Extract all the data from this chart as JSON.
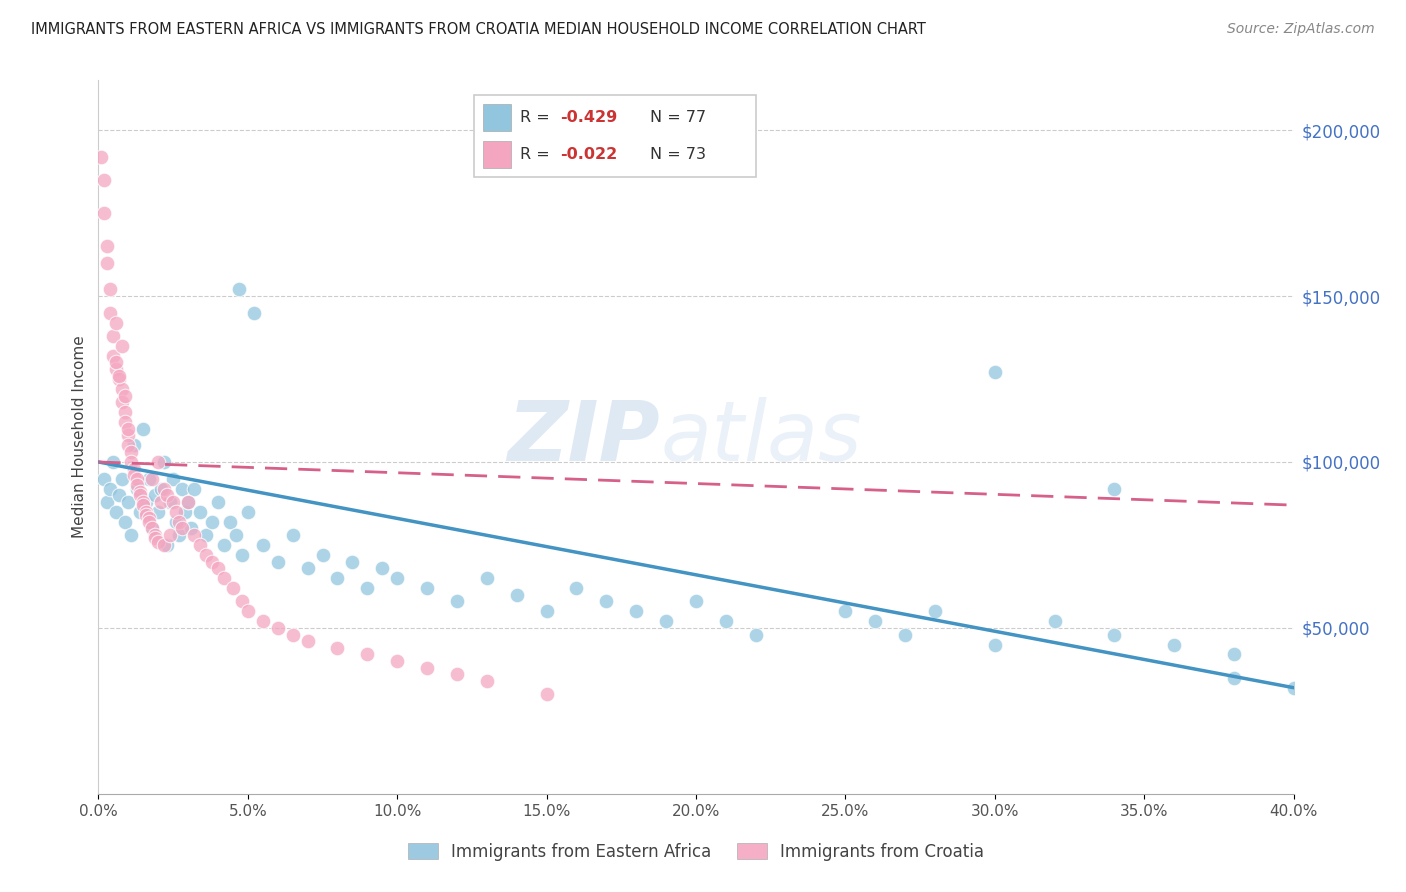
{
  "title": "IMMIGRANTS FROM EASTERN AFRICA VS IMMIGRANTS FROM CROATIA MEDIAN HOUSEHOLD INCOME CORRELATION CHART",
  "source": "Source: ZipAtlas.com",
  "ylabel": "Median Household Income",
  "right_yticks": [
    0,
    50000,
    100000,
    150000,
    200000
  ],
  "right_yticklabels": [
    "",
    "$50,000",
    "$100,000",
    "$150,000",
    "$200,000"
  ],
  "label1": "Immigrants from Eastern Africa",
  "label2": "Immigrants from Croatia",
  "color1": "#92c5de",
  "color2": "#f4a6c0",
  "line_color1": "#4393c3",
  "line_color2": "#d6608a",
  "watermark_zip": "ZIP",
  "watermark_atlas": "atlas",
  "xlim": [
    0.0,
    0.4
  ],
  "ylim": [
    0,
    215000
  ],
  "blue_scatter_x": [
    0.002,
    0.003,
    0.004,
    0.005,
    0.006,
    0.007,
    0.008,
    0.009,
    0.01,
    0.011,
    0.012,
    0.013,
    0.014,
    0.015,
    0.016,
    0.017,
    0.018,
    0.019,
    0.02,
    0.021,
    0.022,
    0.023,
    0.024,
    0.025,
    0.026,
    0.027,
    0.028,
    0.029,
    0.03,
    0.031,
    0.032,
    0.034,
    0.036,
    0.038,
    0.04,
    0.042,
    0.044,
    0.046,
    0.048,
    0.05,
    0.055,
    0.06,
    0.065,
    0.07,
    0.075,
    0.08,
    0.085,
    0.09,
    0.095,
    0.1,
    0.11,
    0.12,
    0.13,
    0.14,
    0.15,
    0.16,
    0.17,
    0.18,
    0.19,
    0.2,
    0.047,
    0.052,
    0.21,
    0.22,
    0.25,
    0.26,
    0.27,
    0.28,
    0.3,
    0.32,
    0.34,
    0.36,
    0.38,
    0.34,
    0.38,
    0.4,
    0.3
  ],
  "blue_scatter_y": [
    95000,
    88000,
    92000,
    100000,
    85000,
    90000,
    95000,
    82000,
    88000,
    78000,
    105000,
    92000,
    85000,
    110000,
    88000,
    95000,
    80000,
    90000,
    85000,
    92000,
    100000,
    75000,
    88000,
    95000,
    82000,
    78000,
    92000,
    85000,
    88000,
    80000,
    92000,
    85000,
    78000,
    82000,
    88000,
    75000,
    82000,
    78000,
    72000,
    85000,
    75000,
    70000,
    78000,
    68000,
    72000,
    65000,
    70000,
    62000,
    68000,
    65000,
    62000,
    58000,
    65000,
    60000,
    55000,
    62000,
    58000,
    55000,
    52000,
    58000,
    152000,
    145000,
    52000,
    48000,
    55000,
    52000,
    48000,
    55000,
    45000,
    52000,
    48000,
    45000,
    42000,
    92000,
    35000,
    32000,
    127000
  ],
  "pink_scatter_x": [
    0.001,
    0.002,
    0.003,
    0.004,
    0.005,
    0.005,
    0.006,
    0.007,
    0.008,
    0.008,
    0.009,
    0.009,
    0.01,
    0.01,
    0.011,
    0.011,
    0.012,
    0.012,
    0.013,
    0.013,
    0.014,
    0.014,
    0.015,
    0.015,
    0.016,
    0.016,
    0.017,
    0.017,
    0.018,
    0.018,
    0.019,
    0.019,
    0.02,
    0.02,
    0.021,
    0.022,
    0.022,
    0.023,
    0.024,
    0.025,
    0.026,
    0.027,
    0.028,
    0.03,
    0.032,
    0.034,
    0.036,
    0.038,
    0.04,
    0.042,
    0.045,
    0.048,
    0.05,
    0.055,
    0.06,
    0.065,
    0.07,
    0.08,
    0.09,
    0.1,
    0.11,
    0.12,
    0.13,
    0.15,
    0.003,
    0.004,
    0.002,
    0.006,
    0.008,
    0.006,
    0.007,
    0.009,
    0.01
  ],
  "pink_scatter_y": [
    192000,
    175000,
    165000,
    145000,
    138000,
    132000,
    128000,
    125000,
    122000,
    118000,
    115000,
    112000,
    108000,
    105000,
    103000,
    100000,
    98000,
    96000,
    95000,
    93000,
    91000,
    90000,
    88000,
    87000,
    85000,
    84000,
    83000,
    82000,
    80000,
    95000,
    78000,
    77000,
    100000,
    76000,
    88000,
    92000,
    75000,
    90000,
    78000,
    88000,
    85000,
    82000,
    80000,
    88000,
    78000,
    75000,
    72000,
    70000,
    68000,
    65000,
    62000,
    58000,
    55000,
    52000,
    50000,
    48000,
    46000,
    44000,
    42000,
    40000,
    38000,
    36000,
    34000,
    30000,
    160000,
    152000,
    185000,
    142000,
    135000,
    130000,
    126000,
    120000,
    110000
  ],
  "xtick_positions": [
    0.0,
    0.05,
    0.1,
    0.15,
    0.2,
    0.25,
    0.3,
    0.35,
    0.4
  ],
  "xtick_labels": [
    "0.0%",
    "5.0%",
    "10.0%",
    "15.0%",
    "20.0%",
    "25.0%",
    "30.0%",
    "35.0%",
    "40.0%"
  ],
  "blue_trendline_x0": 0.0,
  "blue_trendline_y0": 100000,
  "blue_trendline_x1": 0.4,
  "blue_trendline_y1": 32000,
  "pink_trendline_x0": 0.0,
  "pink_trendline_y0": 100000,
  "pink_trendline_x1": 0.4,
  "pink_trendline_y1": 87000
}
